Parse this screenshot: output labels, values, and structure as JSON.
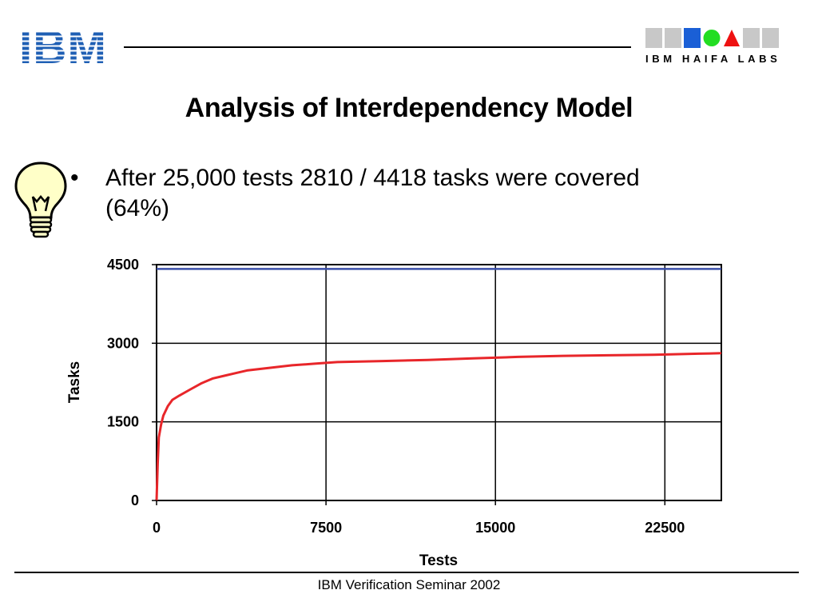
{
  "header": {
    "logo_text": "IBM",
    "labs_text": "IBM HAIFA LABS",
    "labs_squares": [
      "gray",
      "gray",
      "blue-square",
      "green-circle",
      "red-triangle",
      "gray",
      "gray"
    ]
  },
  "slide": {
    "title": "Analysis of Interdependency Model",
    "bullet_marker": "•",
    "bullet_line1": "After 25,000 tests 2810 / 4418 tasks were covered",
    "bullet_line2": "(64%)",
    "icon": "lightbulb-icon"
  },
  "chart_data": {
    "type": "line",
    "xlabel": "Tests",
    "ylabel": "Tasks",
    "xlim": [
      0,
      25000
    ],
    "ylim": [
      0,
      4500
    ],
    "xticks": [
      0,
      7500,
      15000,
      22500
    ],
    "yticks": [
      0,
      1500,
      3000,
      4500
    ],
    "grid": true,
    "series": [
      {
        "color": "#e8262a",
        "x": [
          0,
          50,
          100,
          200,
          300,
          500,
          700,
          1000,
          1500,
          2000,
          2500,
          3000,
          3500,
          4000,
          5000,
          6000,
          7000,
          8000,
          9000,
          10000,
          12000,
          14000,
          16000,
          18000,
          20000,
          22000,
          24000,
          25000
        ],
        "y": [
          0,
          700,
          1200,
          1450,
          1620,
          1800,
          1920,
          2000,
          2120,
          2240,
          2330,
          2380,
          2430,
          2480,
          2530,
          2580,
          2610,
          2640,
          2650,
          2660,
          2680,
          2710,
          2740,
          2760,
          2770,
          2780,
          2800,
          2810
        ]
      },
      {
        "color": "#3b4fa8",
        "x": [
          0,
          25000
        ],
        "y": [
          4418,
          4418
        ]
      }
    ]
  },
  "footer": {
    "text": "IBM Verification Seminar 2002"
  }
}
